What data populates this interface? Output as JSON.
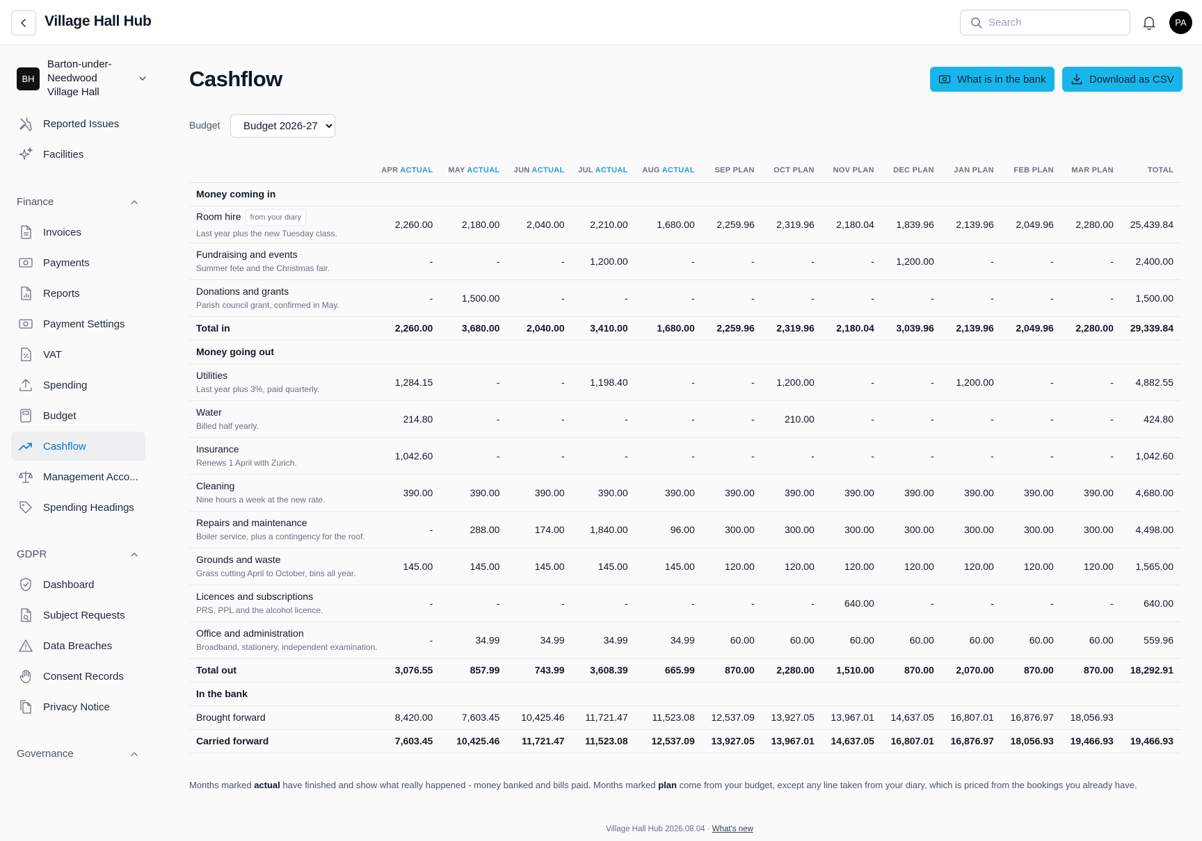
{
  "app": {
    "title": "Village Hall Hub",
    "avatar_initials": "PA",
    "search_placeholder": "Search"
  },
  "org": {
    "logo_initials": "BH",
    "name": "Barton-under-Needwood Village Hall"
  },
  "sidebar": {
    "top_items": [
      {
        "label": "Reported Issues",
        "icon": "tools-icon"
      },
      {
        "label": "Facilities",
        "icon": "sparkles-icon"
      }
    ],
    "finance_label": "Finance",
    "finance_items": [
      {
        "label": "Invoices",
        "icon": "document-icon"
      },
      {
        "label": "Payments",
        "icon": "banknote-icon"
      },
      {
        "label": "Reports",
        "icon": "report-icon"
      },
      {
        "label": "Payment Settings",
        "icon": "banknote-icon"
      },
      {
        "label": "VAT",
        "icon": "percent-document-icon"
      },
      {
        "label": "Spending",
        "icon": "upload-icon"
      },
      {
        "label": "Budget",
        "icon": "calculator-icon"
      },
      {
        "label": "Cashflow",
        "icon": "trend-up-icon",
        "active": true
      },
      {
        "label": "Management Acco...",
        "icon": "scales-icon"
      },
      {
        "label": "Spending Headings",
        "icon": "tag-icon"
      }
    ],
    "gdpr_label": "GDPR",
    "gdpr_items": [
      {
        "label": "Dashboard",
        "icon": "shield-check-icon"
      },
      {
        "label": "Subject Requests",
        "icon": "document-search-icon"
      },
      {
        "label": "Data Breaches",
        "icon": "warning-icon"
      },
      {
        "label": "Consent Records",
        "icon": "hand-icon"
      },
      {
        "label": "Privacy Notice",
        "icon": "documents-icon"
      }
    ],
    "governance_label": "Governance"
  },
  "page": {
    "title": "Cashflow",
    "bank_button": "What is in the bank",
    "csv_button": "Download as CSV",
    "budget_label": "Budget",
    "budget_selected": "Budget 2026-27"
  },
  "table": {
    "columns": [
      {
        "month": "APR",
        "kind": "ACTUAL",
        "actual": true
      },
      {
        "month": "MAY",
        "kind": "ACTUAL",
        "actual": true
      },
      {
        "month": "JUN",
        "kind": "ACTUAL",
        "actual": true
      },
      {
        "month": "JUL",
        "kind": "ACTUAL",
        "actual": true
      },
      {
        "month": "AUG",
        "kind": "ACTUAL",
        "actual": true
      },
      {
        "month": "SEP",
        "kind": "PLAN",
        "actual": false
      },
      {
        "month": "OCT",
        "kind": "PLAN",
        "actual": false
      },
      {
        "month": "NOV",
        "kind": "PLAN",
        "actual": false
      },
      {
        "month": "DEC",
        "kind": "PLAN",
        "actual": false
      },
      {
        "month": "JAN",
        "kind": "PLAN",
        "actual": false
      },
      {
        "month": "FEB",
        "kind": "PLAN",
        "actual": false
      },
      {
        "month": "MAR",
        "kind": "PLAN",
        "actual": false
      }
    ],
    "total_header": "TOTAL",
    "rows": [
      {
        "type": "section",
        "label": "Money coming in"
      },
      {
        "type": "line",
        "label": "Room hire",
        "tag": "from your diary",
        "note": "Last year plus the new Tuesday class.",
        "values": [
          "2,260.00",
          "2,180.00",
          "2,040.00",
          "2,210.00",
          "1,680.00",
          "2,259.96",
          "2,319.96",
          "2,180.04",
          "1,839.96",
          "2,139.96",
          "2,049.96",
          "2,280.00"
        ],
        "total": "25,439.84"
      },
      {
        "type": "line",
        "label": "Fundraising and events",
        "note": "Summer fete and the Christmas fair.",
        "values": [
          "-",
          "-",
          "-",
          "1,200.00",
          "-",
          "-",
          "-",
          "-",
          "1,200.00",
          "-",
          "-",
          "-"
        ],
        "total": "2,400.00"
      },
      {
        "type": "line",
        "label": "Donations and grants",
        "note": "Parish council grant, confirmed in May.",
        "values": [
          "-",
          "1,500.00",
          "-",
          "-",
          "-",
          "-",
          "-",
          "-",
          "-",
          "-",
          "-",
          "-"
        ],
        "total": "1,500.00"
      },
      {
        "type": "total",
        "label": "Total in",
        "values": [
          "2,260.00",
          "3,680.00",
          "2,040.00",
          "3,410.00",
          "1,680.00",
          "2,259.96",
          "2,319.96",
          "2,180.04",
          "3,039.96",
          "2,139.96",
          "2,049.96",
          "2,280.00"
        ],
        "total": "29,339.84"
      },
      {
        "type": "section",
        "label": "Money going out"
      },
      {
        "type": "line",
        "label": "Utilities",
        "note": "Last year plus 3%, paid quarterly.",
        "values": [
          "1,284.15",
          "-",
          "-",
          "1,198.40",
          "-",
          "-",
          "1,200.00",
          "-",
          "-",
          "1,200.00",
          "-",
          "-"
        ],
        "total": "4,882.55"
      },
      {
        "type": "line",
        "label": "Water",
        "note": "Billed half yearly.",
        "values": [
          "214.80",
          "-",
          "-",
          "-",
          "-",
          "-",
          "210.00",
          "-",
          "-",
          "-",
          "-",
          "-"
        ],
        "total": "424.80"
      },
      {
        "type": "line",
        "label": "Insurance",
        "note": "Renews 1 April with Zurich.",
        "values": [
          "1,042.60",
          "-",
          "-",
          "-",
          "-",
          "-",
          "-",
          "-",
          "-",
          "-",
          "-",
          "-"
        ],
        "total": "1,042.60"
      },
      {
        "type": "line",
        "label": "Cleaning",
        "note": "Nine hours a week at the new rate.",
        "values": [
          "390.00",
          "390.00",
          "390.00",
          "390.00",
          "390.00",
          "390.00",
          "390.00",
          "390.00",
          "390.00",
          "390.00",
          "390.00",
          "390.00"
        ],
        "total": "4,680.00"
      },
      {
        "type": "line",
        "label": "Repairs and maintenance",
        "note": "Boiler service, plus a contingency for the roof.",
        "values": [
          "-",
          "288.00",
          "174.00",
          "1,840.00",
          "96.00",
          "300.00",
          "300.00",
          "300.00",
          "300.00",
          "300.00",
          "300.00",
          "300.00"
        ],
        "total": "4,498.00"
      },
      {
        "type": "line",
        "label": "Grounds and waste",
        "note": "Grass cutting April to October, bins all year.",
        "values": [
          "145.00",
          "145.00",
          "145.00",
          "145.00",
          "145.00",
          "120.00",
          "120.00",
          "120.00",
          "120.00",
          "120.00",
          "120.00",
          "120.00"
        ],
        "total": "1,565.00"
      },
      {
        "type": "line",
        "label": "Licences and subscriptions",
        "note": "PRS, PPL and the alcohol licence.",
        "values": [
          "-",
          "-",
          "-",
          "-",
          "-",
          "-",
          "-",
          "640.00",
          "-",
          "-",
          "-",
          "-"
        ],
        "total": "640.00"
      },
      {
        "type": "line",
        "label": "Office and administration",
        "note": "Broadband, stationery, independent examination.",
        "values": [
          "-",
          "34.99",
          "34.99",
          "34.99",
          "34.99",
          "60.00",
          "60.00",
          "60.00",
          "60.00",
          "60.00",
          "60.00",
          "60.00"
        ],
        "total": "559.96"
      },
      {
        "type": "total",
        "label": "Total out",
        "values": [
          "3,076.55",
          "857.99",
          "743.99",
          "3,608.39",
          "665.99",
          "870.00",
          "2,280.00",
          "1,510.00",
          "870.00",
          "2,070.00",
          "870.00",
          "870.00"
        ],
        "total": "18,292.91"
      },
      {
        "type": "section",
        "label": "In the bank"
      },
      {
        "type": "bank",
        "label": "Brought forward",
        "values": [
          "8,420.00",
          "7,603.45",
          "10,425.46",
          "11,721.47",
          "11,523.08",
          "12,537.09",
          "13,927.05",
          "13,967.01",
          "14,637.05",
          "16,807.01",
          "16,876.97",
          "18,056.93"
        ],
        "total": ""
      },
      {
        "type": "total",
        "label": "Carried forward",
        "values": [
          "7,603.45",
          "10,425.46",
          "11,721.47",
          "11,523.08",
          "12,537.09",
          "13,927.05",
          "13,967.01",
          "14,637.05",
          "16,807.01",
          "16,876.97",
          "18,056.93",
          "19,466.93"
        ],
        "total": "19,466.93"
      }
    ]
  },
  "footnote": {
    "p1": "Months marked ",
    "actual": "actual",
    "p2": " have finished and show what really happened - money banked and bills paid. Months marked ",
    "plan": "plan",
    "p3": " come from your budget, except any line taken from your diary, which is priced from the bookings you already have."
  },
  "footer": {
    "version": "Village Hall Hub 2026.08.04 · ",
    "whats_new": "What's new"
  }
}
